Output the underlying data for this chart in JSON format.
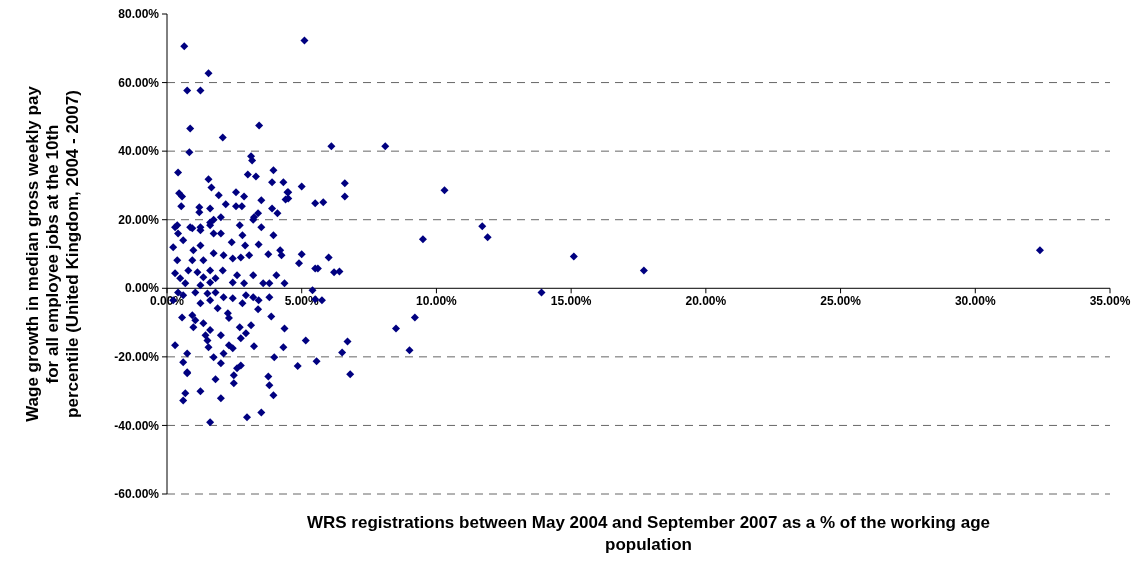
{
  "chart_data": {
    "type": "scatter",
    "xlabel": "WRS registrations between May 2004 and September 2007 as a % of the working age population",
    "ylabel": "Wage growth in median gross weekly pay for all employee jobs at the 10th percentile (United Kingdom, 2004 - 2007)",
    "xlim": [
      0,
      35
    ],
    "ylim": [
      -60,
      80
    ],
    "xticks": [
      {
        "value": 0,
        "label": "0.00%"
      },
      {
        "value": 5,
        "label": "5.00%"
      },
      {
        "value": 10,
        "label": "10.00%"
      },
      {
        "value": 15,
        "label": "15.00%"
      },
      {
        "value": 20,
        "label": "20.00%"
      },
      {
        "value": 25,
        "label": "25.00%"
      },
      {
        "value": 30,
        "label": "30.00%"
      },
      {
        "value": 35,
        "label": "35.00%"
      }
    ],
    "yticks": [
      {
        "value": -60,
        "label": "-60.00%"
      },
      {
        "value": -40,
        "label": "-40.00%"
      },
      {
        "value": -20,
        "label": "-20.00%"
      },
      {
        "value": 0,
        "label": "0.00%"
      },
      {
        "value": 20,
        "label": "20.00%"
      },
      {
        "value": 40,
        "label": "40.00%"
      },
      {
        "value": 60,
        "label": "60.00%"
      },
      {
        "value": 80,
        "label": "80.00%"
      }
    ],
    "grid": "y",
    "marker": "diamond",
    "series": [
      {
        "color": "#000080",
        "x": [
          0.64,
          5.1,
          1.54,
          0.75,
          1.24,
          0.86,
          3.42,
          0.83,
          2.07,
          3.12,
          3.16,
          6.1,
          8.1,
          5.0,
          5.5,
          5.8,
          6.6,
          6.6,
          4.5,
          4.5,
          10.3,
          11.7,
          11.9,
          9.5,
          32.4,
          17.7,
          15.1,
          13.9,
          5.0,
          4.9,
          5.5,
          5.6,
          6.0,
          6.2,
          6.4,
          5.4,
          5.5,
          5.75,
          8.5,
          9.2,
          9.0,
          5.15,
          6.7,
          6.5,
          4.85,
          5.55,
          6.8,
          0.41,
          0.45,
          0.56,
          0.53,
          1.2,
          1.2,
          1.6,
          1.54,
          1.65,
          1.92,
          2.18,
          2.56,
          2.86,
          2.56,
          2.78,
          3.0,
          3.3,
          3.95,
          3.9,
          4.32,
          4.47,
          4.4,
          3.5,
          3.9,
          4.1,
          3.38,
          3.23,
          3.2,
          2.0,
          1.73,
          2.7,
          3.5,
          0.38,
          0.86,
          1.24,
          1.6,
          0.3,
          0.41,
          0.23,
          0.94,
          1.24,
          1.6,
          2.0,
          1.73,
          2.8,
          2.4,
          2.9,
          3.4,
          3.95,
          3.76,
          4.2,
          4.25,
          0.6,
          0.98,
          1.24,
          0.38,
          0.94,
          1.35,
          1.73,
          2.1,
          2.44,
          2.74,
          3.05,
          0.3,
          0.49,
          0.79,
          1.13,
          1.35,
          1.6,
          1.8,
          2.07,
          2.6,
          3.2,
          2.86,
          2.44,
          3.57,
          3.8,
          4.06,
          4.36,
          0.68,
          1.24,
          1.6,
          0.41,
          0.6,
          0.23,
          1.05,
          1.5,
          1.8,
          1.6,
          2.1,
          2.44,
          1.24,
          1.88,
          2.93,
          3.2,
          3.4,
          3.8,
          3.38,
          2.8,
          0.56,
          0.94,
          1.05,
          0.98,
          1.35,
          2.26,
          2.3,
          2.7,
          3.12,
          3.87,
          4.36,
          1.6,
          1.43,
          1.5,
          2.0,
          2.93,
          2.74,
          1.54,
          2.3,
          2.44,
          2.1,
          3.23,
          0.3,
          0.75,
          0.6,
          0.75,
          0.75,
          1.73,
          2.0,
          2.74,
          2.6,
          2.48,
          2.48,
          1.8,
          3.76,
          3.8,
          3.95,
          3.98,
          1.24,
          0.68,
          0.6,
          2.0,
          2.97,
          3.5,
          1.6,
          4.32
        ],
        "values": [
          70.6,
          72.3,
          62.7,
          57.7,
          57.7,
          46.6,
          47.5,
          39.7,
          44.0,
          38.5,
          37.3,
          41.4,
          41.4,
          29.7,
          24.8,
          25.1,
          30.6,
          26.8,
          28.0,
          26.2,
          28.6,
          18.1,
          14.9,
          14.3,
          11.1,
          5.2,
          9.3,
          -1.2,
          9.9,
          7.3,
          5.8,
          5.8,
          9.0,
          4.7,
          4.9,
          -0.6,
          -3.2,
          -3.5,
          -11.7,
          -8.5,
          -18.1,
          -15.2,
          -15.5,
          -18.7,
          -22.7,
          -21.3,
          -25.1,
          33.8,
          27.7,
          26.8,
          23.9,
          23.6,
          22.2,
          23.3,
          31.8,
          29.4,
          27.1,
          24.5,
          28.0,
          26.8,
          23.9,
          23.9,
          33.2,
          32.6,
          34.4,
          30.9,
          30.9,
          28.0,
          25.9,
          25.7,
          23.3,
          21.9,
          21.9,
          20.7,
          20.0,
          20.7,
          20.0,
          18.4,
          17.8,
          18.4,
          17.8,
          17.8,
          19.2,
          17.8,
          16.0,
          12.0,
          17.5,
          16.9,
          18.4,
          16.0,
          16.0,
          15.5,
          13.4,
          12.5,
          12.8,
          15.5,
          9.9,
          11.1,
          9.6,
          14.0,
          11.1,
          12.5,
          8.2,
          8.2,
          8.2,
          10.2,
          9.6,
          8.7,
          9.0,
          9.6,
          4.4,
          2.9,
          5.2,
          4.7,
          3.2,
          5.2,
          2.9,
          5.2,
          3.8,
          3.8,
          1.5,
          1.7,
          1.5,
          1.5,
          3.8,
          1.5,
          1.5,
          0.9,
          1.7,
          -1.2,
          -2.0,
          -3.5,
          -1.2,
          -1.5,
          -1.2,
          -3.5,
          -2.6,
          -2.9,
          -4.4,
          -5.8,
          -2.0,
          -2.6,
          -3.5,
          -2.6,
          -6.1,
          -4.4,
          -8.5,
          -7.9,
          -9.3,
          -11.4,
          -10.2,
          -7.3,
          -8.7,
          -11.4,
          -10.8,
          -8.2,
          -11.7,
          -12.2,
          -13.7,
          -15.2,
          -13.7,
          -13.1,
          -14.6,
          -17.2,
          -16.6,
          -17.5,
          -19.0,
          -16.9,
          -16.6,
          -19.0,
          -21.6,
          -24.5,
          -24.8,
          -20.1,
          -21.9,
          -22.5,
          -23.3,
          -25.4,
          -27.7,
          -26.5,
          -25.7,
          -28.3,
          -31.2,
          -20.1,
          -30.0,
          -30.6,
          -32.7,
          -32.1,
          -37.6,
          -36.2,
          -39.1,
          -17.2
        ]
      }
    ]
  }
}
